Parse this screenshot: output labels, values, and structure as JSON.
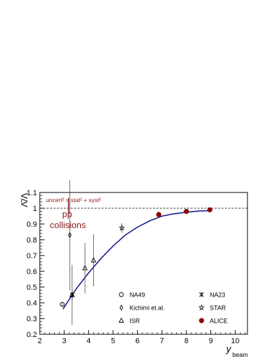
{
  "chart_data": {
    "type": "scatter",
    "title": "",
    "xlabel": "y",
    "xlabel_sub": "beam",
    "ylabel": "Λ̄/Λ",
    "xlim": [
      2,
      10.5
    ],
    "ylim": [
      0.2,
      1.1
    ],
    "x_ticks": [
      "2",
      "3",
      "4",
      "5",
      "6",
      "7",
      "8",
      "9",
      "10"
    ],
    "y_ticks": [
      "0.2",
      "0.3",
      "0.4",
      "0.5",
      "0.6",
      "0.7",
      "0.8",
      "0.9",
      "1",
      "1.1"
    ],
    "reference_line": 1.0,
    "annotations": {
      "uncert_note": "uncert² = stat² + syst²",
      "system_line1": "pp",
      "system_line2": "collisions"
    },
    "fit_curve": {
      "color": "#1a1a8c",
      "points": [
        [
          2.95,
          0.36
        ],
        [
          3.2,
          0.42
        ],
        [
          3.5,
          0.49
        ],
        [
          4.0,
          0.59
        ],
        [
          4.5,
          0.68
        ],
        [
          5.0,
          0.76
        ],
        [
          5.5,
          0.83
        ],
        [
          6.0,
          0.88
        ],
        [
          6.5,
          0.92
        ],
        [
          7.0,
          0.95
        ],
        [
          7.5,
          0.965
        ],
        [
          8.0,
          0.975
        ],
        [
          8.5,
          0.982
        ],
        [
          9.0,
          0.985
        ]
      ]
    },
    "series": [
      {
        "name": "NA49",
        "marker": "open-circle",
        "color": "#000000",
        "points": [
          {
            "x": 2.92,
            "y": 0.39,
            "err": 0.015
          }
        ]
      },
      {
        "name": "Kichimi et.al.",
        "marker": "open-diamond",
        "color": "#000000",
        "points": [
          {
            "x": 3.23,
            "y": 0.83,
            "err": 0.35
          }
        ]
      },
      {
        "name": "ISR",
        "marker": "open-triangle",
        "color": "#000000",
        "points": [
          {
            "x": 3.32,
            "y": 0.45,
            "err": 0.19
          },
          {
            "x": 3.85,
            "y": 0.62,
            "err": 0.16
          },
          {
            "x": 4.2,
            "y": 0.67,
            "err": 0.165
          }
        ]
      },
      {
        "name": "NA23",
        "marker": "asterisk",
        "color": "#000000",
        "points": [
          {
            "x": 3.33,
            "y": 0.45,
            "err": 0.03
          }
        ]
      },
      {
        "name": "STAR",
        "marker": "open-star",
        "color": "#000000",
        "points": [
          {
            "x": 5.36,
            "y": 0.875,
            "err": 0.03
          }
        ]
      },
      {
        "name": "ALICE",
        "marker": "filled-circle",
        "color": "#8b0000",
        "points": [
          {
            "x": 6.87,
            "y": 0.96,
            "err": 0.02
          },
          {
            "x": 8.0,
            "y": 0.98,
            "err": 0.01
          },
          {
            "x": 8.96,
            "y": 0.99,
            "err": 0.01
          }
        ]
      }
    ],
    "legend": {
      "placement": "lower-right",
      "left_column": [
        "NA49",
        "Kichimi et.al.",
        "ISR"
      ],
      "right_column": [
        "NA23",
        "STAR",
        "ALICE"
      ]
    },
    "colors": {
      "annotation": "#8b1a1a",
      "axis": "#000000",
      "fit": "#1a1a8c",
      "alice": "#8b0000"
    }
  }
}
